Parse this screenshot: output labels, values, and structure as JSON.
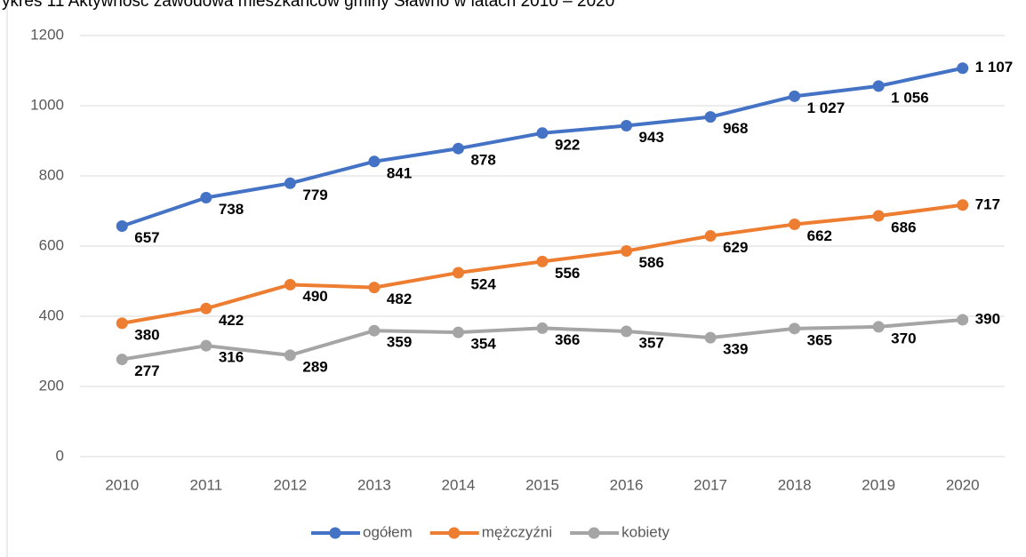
{
  "chart_data": {
    "type": "line",
    "title": "ykres 11 Aktywność zawodowa mieszkańców gminy Sławno w latach 2010 – 2020",
    "categories": [
      "2010",
      "2011",
      "2012",
      "2013",
      "2014",
      "2015",
      "2016",
      "2017",
      "2018",
      "2019",
      "2020"
    ],
    "series": [
      {
        "name": "ogółem",
        "color": "#4472c4",
        "values": [
          657,
          738,
          779,
          841,
          878,
          922,
          943,
          968,
          1027,
          1056,
          1107
        ],
        "value_labels": [
          "657",
          "738",
          "779",
          "841",
          "878",
          "922",
          "943",
          "968",
          "1 027",
          "1 056",
          "1 107"
        ]
      },
      {
        "name": "mężczyźni",
        "color": "#ed7d31",
        "values": [
          380,
          422,
          490,
          482,
          524,
          556,
          586,
          629,
          662,
          686,
          717
        ]
      },
      {
        "name": "kobiety",
        "color": "#a5a5a5",
        "values": [
          277,
          316,
          289,
          359,
          354,
          366,
          357,
          339,
          365,
          370,
          390
        ]
      }
    ],
    "ylim": [
      0,
      1200
    ],
    "yticks": [
      0,
      200,
      400,
      600,
      800,
      1000,
      1200
    ],
    "grid": true,
    "legend": "bottom"
  }
}
